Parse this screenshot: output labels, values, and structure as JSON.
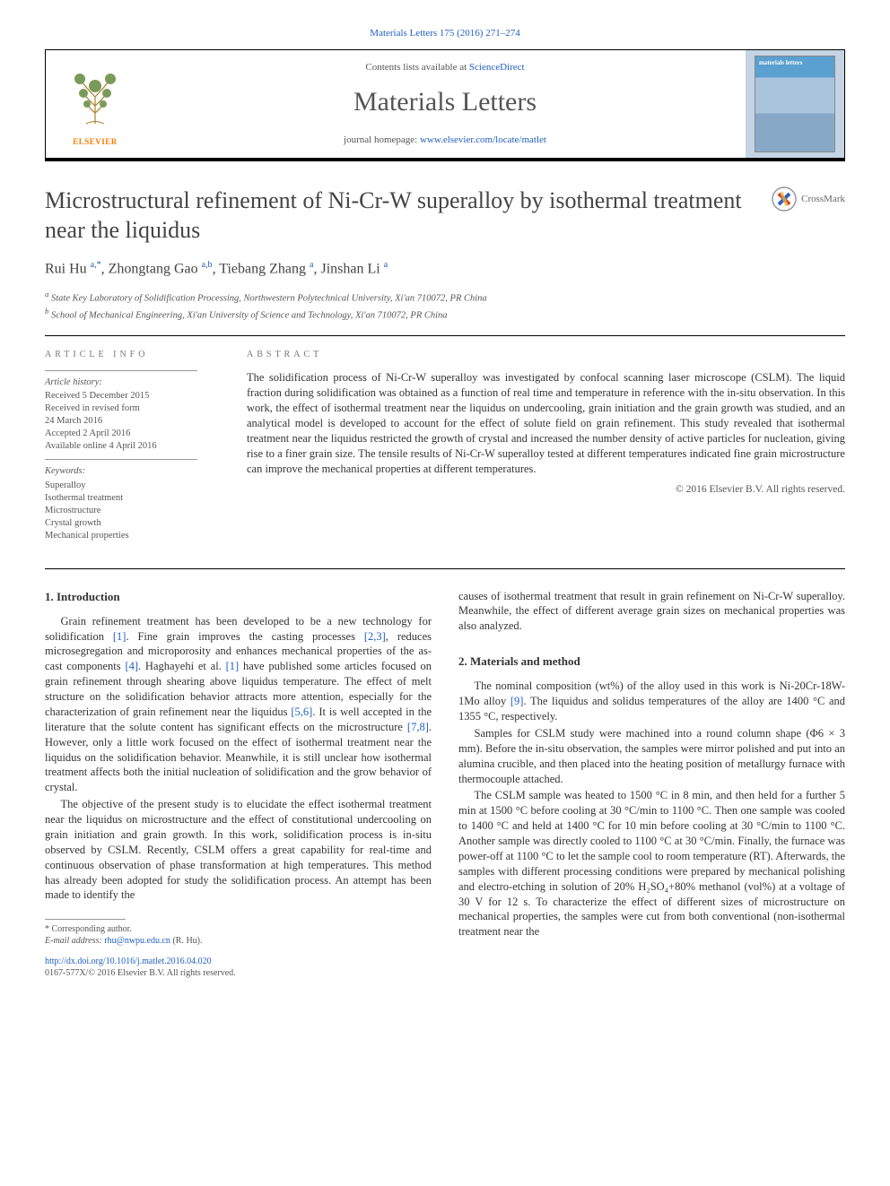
{
  "citation": "Materials Letters 175 (2016) 271–274",
  "header": {
    "contents_prefix": "Contents lists available at ",
    "contents_link": "ScienceDirect",
    "journal": "Materials Letters",
    "homepage_prefix": "journal homepage: ",
    "homepage_url": "www.elsevier.com/locate/matlet",
    "publisher": "ELSEVIER"
  },
  "article": {
    "title": "Microstructural refinement of Ni-Cr-W superalloy by isothermal treatment near the liquidus",
    "crossmark": "CrossMark",
    "authors_html": "Rui Hu <sup>a,</sup><sup class='star-sup'>*</sup>, Zhongtang Gao <sup>a,b</sup>, Tiebang Zhang <sup>a</sup>, Jinshan Li <sup>a</sup>",
    "affiliations": [
      "a State Key Laboratory of Solidification Processing, Northwestern Polytechnical University, Xi'an 710072, PR China",
      "b School of Mechanical Engineering, Xi'an University of Science and Technology, Xi'an 710072, PR China"
    ]
  },
  "info": {
    "heading": "ARTICLE INFO",
    "history_label": "Article history:",
    "history": [
      "Received 5 December 2015",
      "Received in revised form",
      "24 March 2016",
      "Accepted 2 April 2016",
      "Available online 4 April 2016"
    ],
    "keywords_label": "Keywords:",
    "keywords": [
      "Superalloy",
      "Isothermal treatment",
      "Microstructure",
      "Crystal growth",
      "Mechanical properties"
    ]
  },
  "abstract": {
    "heading": "ABSTRACT",
    "text": "The solidification process of Ni-Cr-W superalloy was investigated by confocal scanning laser microscope (CSLM). The liquid fraction during solidification was obtained as a function of real time and temperature in reference with the in-situ observation. In this work, the effect of isothermal treatment near the liquidus on undercooling, grain initiation and the grain growth was studied, and an analytical model is developed to account for the effect of solute field on grain refinement. This study revealed that isothermal treatment near the liquidus restricted the growth of crystal and increased the number density of active particles for nucleation, giving rise to a finer grain size. The tensile results of Ni-Cr-W superalloy tested at different temperatures indicated fine grain microstructure can improve the mechanical properties at different temperatures.",
    "copyright": "© 2016 Elsevier B.V. All rights reserved."
  },
  "sections": {
    "s1_head": "1.  Introduction",
    "s1_p1": "Grain refinement treatment has been developed to be a new technology for solidification <span class='ref'>[1]</span>. Fine grain improves the casting processes <span class='ref'>[2,3]</span>, reduces microsegregation and microporosity and enhances mechanical properties of the as-cast components <span class='ref'>[4]</span>. Haghayehi et al. <span class='ref'>[1]</span> have published some articles focused on grain refinement through shearing above liquidus temperature. The effect of melt structure on the solidification behavior attracts more attention, especially for the characterization of grain refinement near the liquidus <span class='ref'>[5,6]</span>. It is well accepted in the literature that the solute content has significant effects on the microstructure <span class='ref'>[7,8]</span>. However, only a little work focused on the effect of isothermal treatment near the liquidus on the solidification behavior. Meanwhile, it is still unclear how isothermal treatment affects both the initial nucleation of solidification and the grow behavior of crystal.",
    "s1_p2": "The objective of the present study is to elucidate the effect isothermal treatment near the liquidus on microstructure and the effect of constitutional undercooling on grain initiation and grain growth. In this work, solidification process is in-situ observed by CSLM. Recently, CSLM offers a great capability for real-time and continuous observation of phase transformation at high temperatures. This method has already been adopted for study the solidification process. An attempt has been made to identify the",
    "s1_p2b": "causes of isothermal treatment that result in grain refinement on Ni-Cr-W superalloy. Meanwhile, the effect of different average grain sizes on mechanical properties was also analyzed.",
    "s2_head": "2.  Materials and method",
    "s2_p1": "The nominal composition (wt%) of the alloy used in this work is Ni-20Cr-18W-1Mo alloy <span class='ref'>[9]</span>. The liquidus and solidus temperatures of the alloy are 1400 °C and 1355 °C, respectively.",
    "s2_p2": "Samples for CSLM study were machined into a round column shape (Φ6 × 3 mm). Before the in-situ observation, the samples were mirror polished and put into an alumina crucible, and then placed into the heating position of metallurgy furnace with thermocouple attached.",
    "s2_p3": "The CSLM sample was heated to 1500 °C in 8 min, and then held for a further 5 min at 1500 °C before cooling at 30 °C/min to 1100 °C. Then one sample was cooled to 1400 °C and held at 1400 °C for 10 min before cooling at 30 °C/min to 1100 °C. Another sample was directly cooled to 1100 °C at 30 °C/min. Finally, the furnace was power-off at 1100 °C to let the sample cool to room temperature (RT). Afterwards, the samples with different processing conditions were prepared by mechanical polishing and electro-etching in solution of 20% H₂SO₄+80% methanol (vol%) at a voltage of 30 V for 12 s. To characterize the effect of different sizes of microstructure on mechanical properties, the samples were cut from both conventional (non-isothermal treatment near the"
  },
  "footnote": {
    "corr": "* Corresponding author.",
    "email_label": "E-mail address: ",
    "email": "rhu@nwpu.edu.cn",
    "email_suffix": " (R. Hu)."
  },
  "doi": {
    "url": "http://dx.doi.org/10.1016/j.matlet.2016.04.020",
    "issn": "0167-577X/© 2016 Elsevier B.V. All rights reserved."
  },
  "colors": {
    "link": "#2060c0",
    "publisher": "#ff7a00",
    "text": "#333333",
    "muted": "#555555"
  }
}
